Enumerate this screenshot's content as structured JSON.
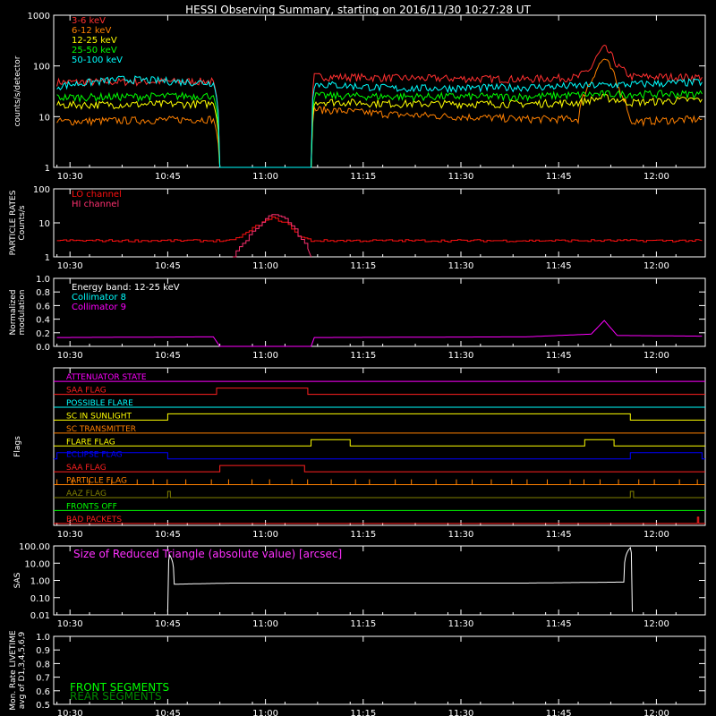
{
  "title": "HESSI Observing Summary, starting on 2016/11/30 10:27:28 UT",
  "colors": {
    "e1": "#ff3030",
    "e2": "#ff8000",
    "e3": "#ffff00",
    "e4": "#00ff00",
    "e5": "#00ffff",
    "lo": "#ff1010",
    "hi": "#ff3070",
    "c8": "#00ffff",
    "c9": "#ff00ff",
    "axis": "#ffffff",
    "sas": "#ff30ff"
  },
  "time_ticks": [
    "10:30",
    "10:45",
    "11:00",
    "11:15",
    "11:30",
    "11:45",
    "12:00"
  ],
  "chart_data": [
    {
      "id": "count-rates",
      "type": "line",
      "ylabel": "counts/s/detector",
      "yscale": "log",
      "ylim": [
        1,
        1000
      ],
      "yticks": [
        "1",
        "10",
        "100",
        "1000"
      ],
      "xlim_minutes": [
        27.5,
        127.5
      ],
      "x_axis": "minutes after 10:00 UT",
      "series": [
        {
          "name": "3-6 keV",
          "color": "#ff3030",
          "points": [
            [
              28,
              48
            ],
            [
              52,
              50
            ],
            [
              53,
              1
            ],
            [
              67,
              1
            ],
            [
              67.5,
              62
            ],
            [
              80,
              58
            ],
            [
              100,
              55
            ],
            [
              108,
              60
            ],
            [
              110,
              90
            ],
            [
              112,
              230
            ],
            [
              114,
              100
            ],
            [
              116,
              62
            ],
            [
              127,
              60
            ]
          ]
        },
        {
          "name": "6-12 keV",
          "color": "#ff8000",
          "points": [
            [
              28,
              8
            ],
            [
              52,
              9
            ],
            [
              53,
              1
            ],
            [
              67,
              1
            ],
            [
              67.5,
              14
            ],
            [
              80,
              11
            ],
            [
              100,
              9
            ],
            [
              108,
              9
            ],
            [
              110,
              50
            ],
            [
              112,
              140
            ],
            [
              114,
              40
            ],
            [
              116,
              8
            ],
            [
              127,
              9
            ]
          ]
        },
        {
          "name": "12-25 keV",
          "color": "#ffff00",
          "points": [
            [
              28,
              17
            ],
            [
              52,
              18
            ],
            [
              53,
              1
            ],
            [
              67,
              1
            ],
            [
              67.5,
              20
            ],
            [
              80,
              18
            ],
            [
              100,
              18
            ],
            [
              108,
              19
            ],
            [
              112,
              24
            ],
            [
              116,
              19
            ],
            [
              127,
              22
            ]
          ]
        },
        {
          "name": "25-50 keV",
          "color": "#00ff00",
          "points": [
            [
              28,
              24
            ],
            [
              52,
              26
            ],
            [
              53,
              1
            ],
            [
              67,
              1
            ],
            [
              67.5,
              26
            ],
            [
              80,
              25
            ],
            [
              100,
              25
            ],
            [
              112,
              28
            ],
            [
              127,
              28
            ]
          ]
        },
        {
          "name": "50-100 keV",
          "color": "#00ffff",
          "points": [
            [
              28,
              40
            ],
            [
              38,
              55
            ],
            [
              52,
              46
            ],
            [
              53,
              1
            ],
            [
              67,
              1
            ],
            [
              67.5,
              44
            ],
            [
              80,
              36
            ],
            [
              100,
              38
            ],
            [
              112,
              42
            ],
            [
              127,
              48
            ]
          ]
        }
      ]
    },
    {
      "id": "particle-rates",
      "type": "line",
      "ylabel": "PARTICLE RATES Counts/s",
      "yscale": "log",
      "ylim": [
        1,
        100
      ],
      "yticks": [
        "1",
        "10",
        "100"
      ],
      "series": [
        {
          "name": "LO channel",
          "color": "#ff1010",
          "points": [
            [
              28,
              3
            ],
            [
              55,
              3
            ],
            [
              57,
              5
            ],
            [
              59,
              9
            ],
            [
              61,
              14
            ],
            [
              63,
              10
            ],
            [
              65,
              4
            ],
            [
              67,
              3
            ],
            [
              127,
              3
            ]
          ]
        },
        {
          "name": "HI channel",
          "color": "#ff3070",
          "points": [
            [
              55,
              1
            ],
            [
              57,
              3
            ],
            [
              59,
              8
            ],
            [
              61,
              18
            ],
            [
              63,
              13
            ],
            [
              65,
              4
            ],
            [
              67,
              1
            ]
          ]
        }
      ]
    },
    {
      "id": "modulation",
      "type": "line",
      "ylabel": "Normalized modulation",
      "annotation": "Energy band: 12-25 keV",
      "ylim": [
        0,
        1.0
      ],
      "yticks": [
        "0.0",
        "0.2",
        "0.4",
        "0.6",
        "0.8",
        "1.0"
      ],
      "series": [
        {
          "name": "Collimator 8",
          "color": "#00ffff",
          "points": []
        },
        {
          "name": "Collimator 9",
          "color": "#ff00ff",
          "points": [
            [
              28,
              0.13
            ],
            [
              52,
              0.14
            ],
            [
              53,
              0.0
            ],
            [
              67,
              0.0
            ],
            [
              67.5,
              0.13
            ],
            [
              100,
              0.14
            ],
            [
              110,
              0.18
            ],
            [
              112,
              0.38
            ],
            [
              114,
              0.16
            ],
            [
              127,
              0.15
            ]
          ]
        }
      ]
    },
    {
      "id": "flags",
      "type": "line",
      "ylabel": "Flags",
      "flags": [
        {
          "name": "ATTENUATOR STATE",
          "color": "#ff00ff",
          "on": []
        },
        {
          "name": "SAA FLAG",
          "color": "#ff2020",
          "on": [
            [
              52.5,
              66.5
            ]
          ]
        },
        {
          "name": "POSSIBLE FLARE",
          "color": "#00ffff",
          "on": []
        },
        {
          "name": "SC IN SUNLIGHT",
          "color": "#ffff00",
          "on": [
            [
              45,
              116
            ]
          ]
        },
        {
          "name": "SC TRANSMITTER",
          "color": "#ff8000",
          "on": []
        },
        {
          "name": "FLARE FLAG",
          "color": "#ffff00",
          "on": [
            [
              67,
              73
            ],
            [
              109,
              113.5
            ]
          ]
        },
        {
          "name": "ECLIPSE FLAG",
          "color": "#0000ff",
          "on": [
            [
              28,
              45
            ],
            [
              116,
              127
            ]
          ]
        },
        {
          "name": "SAA FLAG",
          "color": "#ff2020",
          "on": [
            [
              53,
              66
            ]
          ]
        },
        {
          "name": "PARTICLE FLAG",
          "color": "#ff8000",
          "on": []
        },
        {
          "name": "AAZ FLAG",
          "color": "#808000",
          "on": [
            [
              45,
              45.4
            ],
            [
              116,
              116.5
            ]
          ]
        },
        {
          "name": "FRONTS OFF",
          "color": "#00ff00",
          "on": []
        },
        {
          "name": "BAD PACKETS",
          "color": "#ff2020",
          "on": [
            [
              126.3,
              126.5
            ]
          ]
        }
      ]
    },
    {
      "id": "sas",
      "type": "line",
      "ylabel": "SAS",
      "yscale": "log",
      "annotation": "Size of Reduced Triangle (absolute value) [arcsec]",
      "ylim": [
        0.01,
        100
      ],
      "yticks": [
        "0.01",
        "0.10",
        "1.00",
        "10.00",
        "100.00"
      ],
      "series": [
        {
          "name": "Size of Reduced Triangle",
          "color": "#ffffff",
          "points": [
            [
              45,
              0.015
            ],
            [
              45.3,
              30
            ],
            [
              46,
              0.6
            ],
            [
              55,
              0.7
            ],
            [
              70,
              0.7
            ],
            [
              100,
              0.7
            ],
            [
              115,
              0.8
            ],
            [
              116,
              80
            ],
            [
              116.3,
              0.015
            ]
          ]
        }
      ]
    },
    {
      "id": "livetime",
      "type": "line",
      "ylabel": "Mon. Rate LIVETIME avg of D1,3,4,5,6,9",
      "ylim": [
        0.5,
        1.0
      ],
      "yticks": [
        "0.5",
        "0.6",
        "0.7",
        "0.8",
        "0.9",
        "1.0"
      ],
      "series": [
        {
          "name": "FRONT SEGMENTS",
          "color": "#00ff00",
          "points": []
        },
        {
          "name": "REAR SEGMENTS",
          "color": "#008800",
          "points": []
        }
      ]
    }
  ]
}
